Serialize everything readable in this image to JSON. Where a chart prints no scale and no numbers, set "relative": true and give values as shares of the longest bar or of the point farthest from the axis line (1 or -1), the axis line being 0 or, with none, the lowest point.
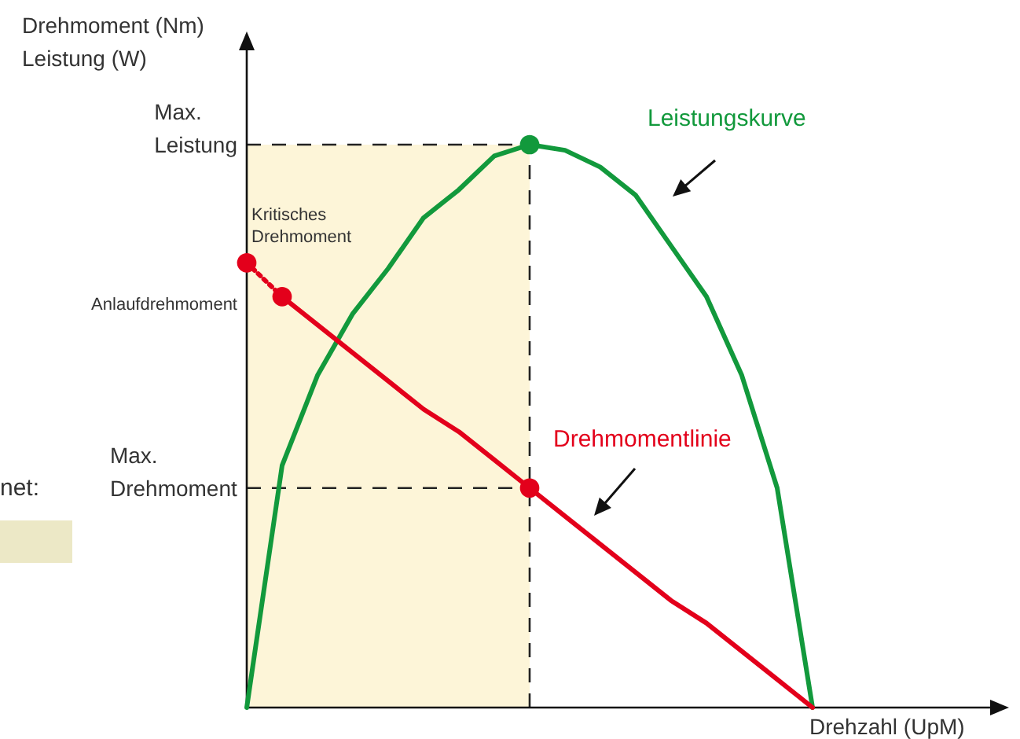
{
  "chart_data": {
    "type": "line",
    "relative": true,
    "xlabel": "Drehzahl (UpM)",
    "ylabel": "Drehmoment (Nm)\nLeistung (W)",
    "categories": [
      null,
      null,
      null,
      null,
      null,
      null,
      null,
      null,
      null,
      null,
      null,
      null,
      null,
      null,
      null,
      null,
      null,
      null,
      null,
      null,
      null,
      null
    ],
    "series": [
      {
        "name": "Leistungskurve",
        "type": "line",
        "color": "#12993c",
        "marker": "none",
        "line_style": "solid",
        "values": [
          0,
          0.43,
          0.59,
          0.7,
          0.78,
          0.87,
          0.92,
          0.98,
          1,
          0.99,
          0.96,
          0.91,
          0.82,
          0.73,
          0.59,
          0.39,
          0,
          null,
          null,
          null,
          null,
          null
        ]
      },
      {
        "name": "Drehmomentlinie",
        "type": "line",
        "color": "#e3001b",
        "marker": "none",
        "line_style": "solid",
        "values": [
          null,
          0.73,
          0.68,
          0.63,
          0.58,
          0.53,
          0.49,
          0.44,
          0.39,
          0.34,
          0.29,
          0.24,
          0.19,
          0.15,
          0.1,
          0.05,
          0,
          null,
          null,
          null,
          null,
          null
        ]
      },
      {
        "type": "line",
        "color": "#e3001b",
        "marker": "circle",
        "line_style": "dotted",
        "values": [
          0.79,
          0.73,
          null,
          null,
          null,
          null,
          null,
          null,
          null,
          null,
          null,
          null,
          null,
          null,
          null,
          null,
          null,
          null,
          null,
          null,
          null,
          null
        ]
      },
      {
        "type": "line",
        "color": "#e3001b",
        "marker": "circle",
        "line_style": "solid",
        "values": [
          null,
          null,
          null,
          null,
          null,
          null,
          null,
          null,
          0.39,
          null,
          null,
          null,
          null,
          null,
          null,
          null,
          null,
          null,
          null,
          null,
          null,
          null
        ]
      },
      {
        "type": "line",
        "color": "#12993c",
        "marker": "circle",
        "line_style": "solid",
        "values": [
          null,
          null,
          null,
          null,
          null,
          null,
          null,
          null,
          1,
          null,
          null,
          null,
          null,
          null,
          null,
          null,
          null,
          null,
          null,
          null,
          null,
          null
        ]
      }
    ],
    "ref_lines": [
      {
        "axis": "y",
        "value": 1,
        "label": "Max. Leistung",
        "line_style": "dashed"
      },
      {
        "axis": "y",
        "value": 0.39,
        "label": "Max. Drehmoment",
        "line_style": "dashed"
      }
    ],
    "annotations": [
      "Kritisches Drehmoment",
      "Anlaufdrehmoment",
      "net:"
    ]
  }
}
